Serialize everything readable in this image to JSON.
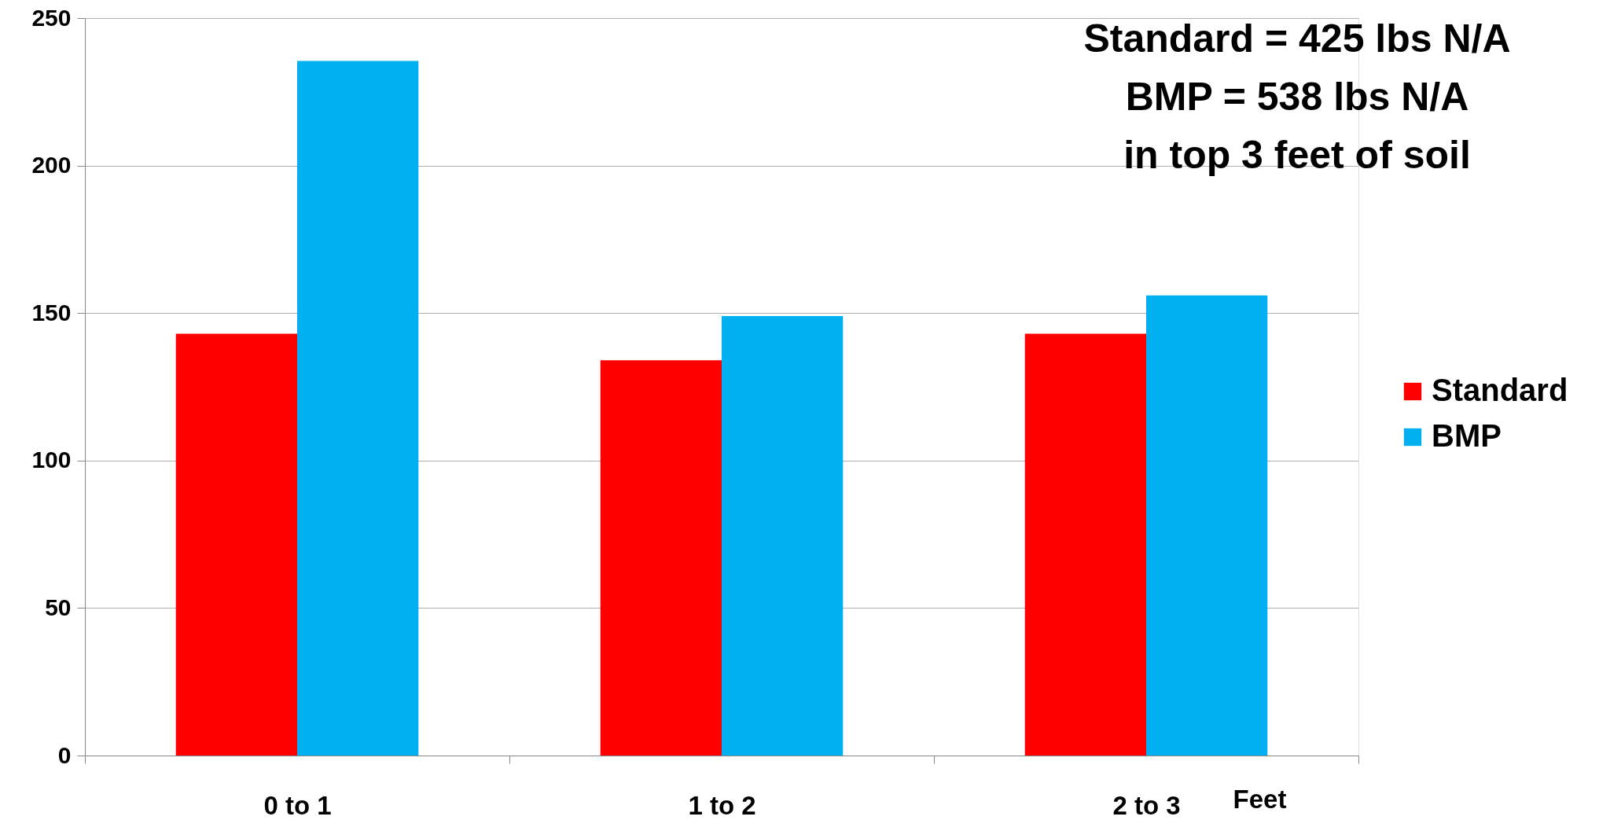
{
  "chart_data": {
    "type": "bar",
    "xlabel": "Feet",
    "categories": [
      "0 to 1",
      "1 to 2",
      "2 to 3"
    ],
    "series": [
      {
        "name": "Standard",
        "color": "#ff0000",
        "values": [
          143,
          134,
          143
        ]
      },
      {
        "name": "BMP",
        "color": "#00b0f0",
        "values": [
          235.5,
          149,
          156
        ]
      }
    ],
    "ylim": [
      0,
      250
    ],
    "yticks": [
      0,
      50,
      100,
      150,
      200,
      250
    ],
    "grid": "y",
    "legend": "right",
    "annotations": [
      "Standard = 425 lbs N/A\nBMP = 538 lbs N/A\nin top 3 feet of soil"
    ]
  }
}
